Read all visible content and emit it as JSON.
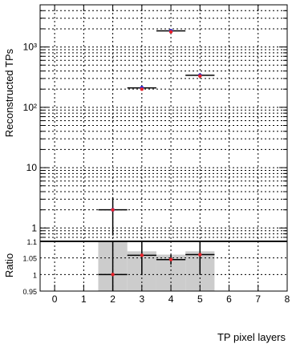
{
  "chart_data": [
    {
      "type": "scatter",
      "xlabel": "",
      "ylabel": "Reconstructed TPs",
      "ylim": [
        0.6,
        5000
      ],
      "xlim": [
        -0.5,
        8
      ],
      "log_y": true,
      "grid": true,
      "y_tick_labels": [
        {
          "value": 1,
          "label": "1"
        },
        {
          "value": 10,
          "label": "10"
        },
        {
          "value": 100,
          "label": "10²"
        },
        {
          "value": 1000,
          "label": "10³"
        }
      ],
      "series": [
        {
          "points": [
            {
              "x": 2,
              "y": 2.0,
              "yerr_low": 0.75,
              "yerr_high": 3.2
            },
            {
              "x": 3,
              "y": 210,
              "yerr_low": 190,
              "yerr_high": 230
            },
            {
              "x": 4,
              "y": 1850,
              "yerr_low": 1800,
              "yerr_high": 1900
            },
            {
              "x": 5,
              "y": 340,
              "yerr_low": 320,
              "yerr_high": 360
            }
          ],
          "marker_color": "#2b2bd6"
        },
        {
          "points": [
            {
              "x": 2,
              "y": 2.0
            },
            {
              "x": 3,
              "y": 200
            },
            {
              "x": 4,
              "y": 1780
            },
            {
              "x": 5,
              "y": 330
            }
          ],
          "marker_color": "#e8222a"
        }
      ]
    },
    {
      "type": "scatter",
      "xlabel": "TP pixel layers",
      "ylabel": "Ratio",
      "ylim": [
        0.95,
        1.1
      ],
      "xlim": [
        -0.5,
        8
      ],
      "grid": true,
      "x_tick_labels": [
        "0",
        "1",
        "2",
        "3",
        "4",
        "5",
        "6",
        "7",
        "8"
      ],
      "y_tick_labels": [
        {
          "value": 0.95,
          "label": "0.95"
        },
        {
          "value": 1.0,
          "label": "1"
        },
        {
          "value": 1.05,
          "label": "1.05"
        },
        {
          "value": 1.1,
          "label": "1.1"
        }
      ],
      "uncertainty_band": [
        {
          "x_from": 1.5,
          "x_to": 2.5,
          "low": 0.95,
          "high": 1.1
        },
        {
          "x_from": 2.5,
          "x_to": 3.5,
          "low": 0.95,
          "high": 1.07
        },
        {
          "x_from": 3.5,
          "x_to": 4.5,
          "low": 0.95,
          "high": 1.06
        },
        {
          "x_from": 4.5,
          "x_to": 5.5,
          "low": 0.95,
          "high": 1.07
        }
      ],
      "points": [
        {
          "x": 2,
          "y": 1.0,
          "yerr": 0.1
        },
        {
          "x": 3,
          "y": 1.058,
          "yerr": 0.06
        },
        {
          "x": 4,
          "y": 1.045,
          "yerr": 0.015
        },
        {
          "x": 5,
          "y": 1.06,
          "yerr": 0.06
        }
      ],
      "band_color": "#cccccc",
      "marker_color": "#e8222a"
    }
  ]
}
